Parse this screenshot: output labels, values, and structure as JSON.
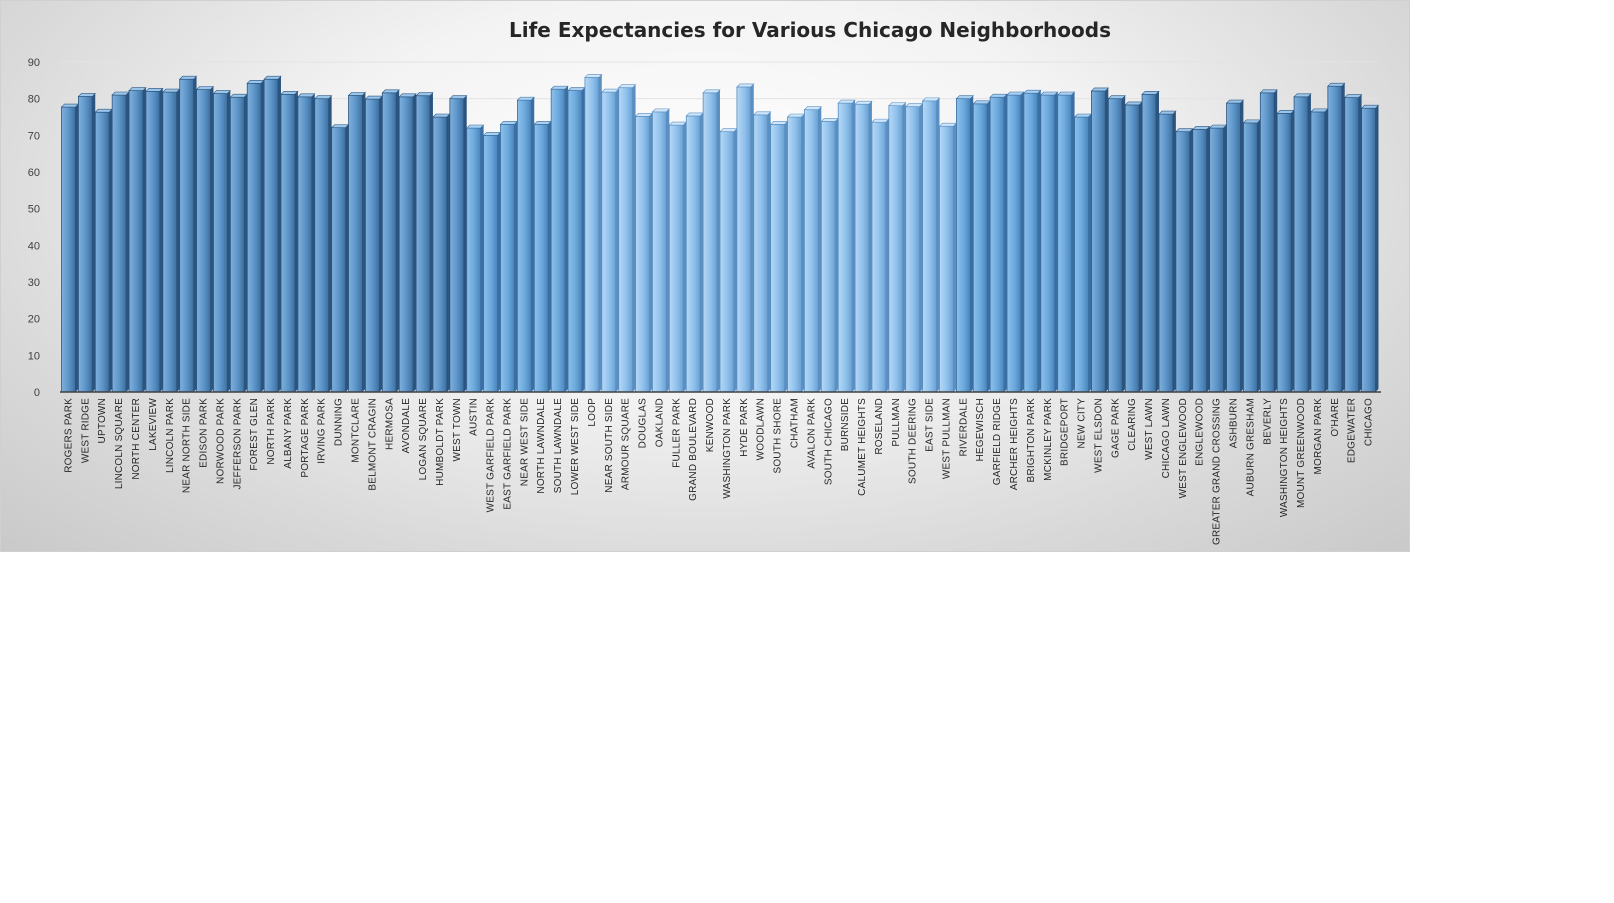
{
  "chart_data": {
    "type": "bar",
    "title": "Life Expectancies for Various Chicago Neighborhoods",
    "xlabel": "",
    "ylabel": "",
    "ylim": [
      0,
      90
    ],
    "yticks": [
      0,
      10,
      20,
      30,
      40,
      50,
      60,
      70,
      80,
      90
    ],
    "grid": true,
    "legend": "none",
    "colors": {
      "bar": "#5b9bd5",
      "bar_dark": "#2f5f8f",
      "bar_light": "#9dc3e6",
      "axis": "#404040",
      "grid": "#e3e3e3"
    },
    "categories": [
      "ROGERS PARK",
      "WEST RIDGE",
      "UPTOWN",
      "LINCOLN SQUARE",
      "NORTH CENTER",
      "LAKEVIEW",
      "LINCOLN PARK",
      "NEAR NORTH SIDE",
      "EDISON PARK",
      "NORWOOD PARK",
      "JEFFERSON PARK",
      "FOREST GLEN",
      "NORTH PARK",
      "ALBANY PARK",
      "PORTAGE PARK",
      "IRVING PARK",
      "DUNNING",
      "MONTCLARE",
      "BELMONT CRAGIN",
      "HERMOSA",
      "AVONDALE",
      "LOGAN SQUARE",
      "HUMBOLDT PARK",
      "WEST TOWN",
      "AUSTIN",
      "WEST GARFIELD PARK",
      "EAST GARFIELD PARK",
      "NEAR WEST SIDE",
      "NORTH LAWNDALE",
      "SOUTH LAWNDALE",
      "LOWER WEST SIDE",
      "LOOP",
      "NEAR SOUTH SIDE",
      "ARMOUR SQUARE",
      "DOUGLAS",
      "OAKLAND",
      "FULLER PARK",
      "GRAND BOULEVARD",
      "KENWOOD",
      "WASHINGTON PARK",
      "HYDE PARK",
      "WOODLAWN",
      "SOUTH SHORE",
      "CHATHAM",
      "AVALON PARK",
      "SOUTH CHICAGO",
      "BURNSIDE",
      "CALUMET HEIGHTS",
      "ROSELAND",
      "PULLMAN",
      "SOUTH DEERING",
      "EAST SIDE",
      "WEST PULLMAN",
      "RIVERDALE",
      "HEGEWISCH",
      "GARFIELD RIDGE",
      "ARCHER HEIGHTS",
      "BRIGHTON PARK",
      "MCKINLEY PARK",
      "BRIDGEPORT",
      "NEW CITY",
      "WEST ELSDON",
      "GAGE PARK",
      "CLEARING",
      "WEST LAWN",
      "CHICAGO LAWN",
      "WEST ENGLEWOOD",
      "ENGLEWOOD",
      "GREATER GRAND CROSSING",
      "ASHBURN",
      "AUBURN GRESHAM",
      "BEVERLY",
      "WASHINGTON HEIGHTS",
      "MOUNT GREENWOOD",
      "MORGAN PARK",
      "O'HARE",
      "EDGEWATER",
      "CHICAGO"
    ],
    "values": [
      77.7,
      80.6,
      76.3,
      81.0,
      82.2,
      82.0,
      81.8,
      85.3,
      82.5,
      81.4,
      80.4,
      84.2,
      85.3,
      81.2,
      80.5,
      80.0,
      72.1,
      80.9,
      79.9,
      81.6,
      80.5,
      80.8,
      75.0,
      80.0,
      72.0,
      70.0,
      73.0,
      79.6,
      73.0,
      82.6,
      82.2,
      85.8,
      81.8,
      83.0,
      75.2,
      76.4,
      72.8,
      75.3,
      81.6,
      71.0,
      83.2,
      75.6,
      73.0,
      75.0,
      77.0,
      73.8,
      78.8,
      78.5,
      73.6,
      78.1,
      77.8,
      79.4,
      72.5,
      80.0,
      78.6,
      80.4,
      81.0,
      81.5,
      81.0,
      81.0,
      75.0,
      82.1,
      80.0,
      78.3,
      81.2,
      75.8,
      71.0,
      71.6,
      72.0,
      78.8,
      73.4,
      81.6,
      76.0,
      80.5,
      76.4,
      83.4,
      80.3,
      77.4
    ],
    "bar_shades": [
      "d",
      "d",
      "d",
      "d",
      "d",
      "d",
      "d",
      "d",
      "d",
      "d",
      "d",
      "d",
      "d",
      "d",
      "d",
      "d",
      "d",
      "d",
      "d",
      "d",
      "d",
      "d",
      "d",
      "d",
      "m",
      "m",
      "m",
      "m",
      "m",
      "m",
      "m",
      "l",
      "l",
      "l",
      "l",
      "l",
      "l",
      "l",
      "l",
      "l",
      "l",
      "l",
      "l",
      "l",
      "l",
      "l",
      "l",
      "l",
      "l",
      "l",
      "l",
      "l",
      "l",
      "m",
      "m",
      "m",
      "m",
      "m",
      "m",
      "m",
      "m",
      "d",
      "d",
      "d",
      "d",
      "d",
      "d",
      "d",
      "d",
      "d",
      "d",
      "d",
      "d",
      "d",
      "d",
      "d",
      "d",
      "d"
    ]
  }
}
